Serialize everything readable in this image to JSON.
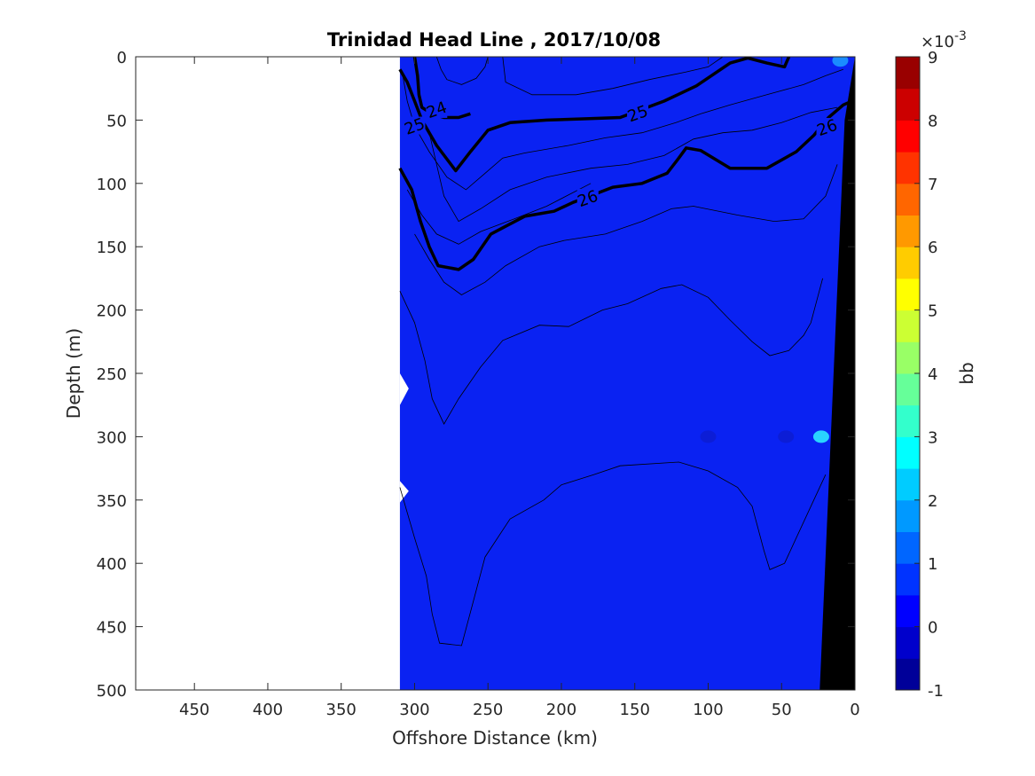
{
  "chart_data": {
    "type": "contourf",
    "title": "Trinidad Head Line , 2017/10/08",
    "xlabel": "Offshore Distance (km)",
    "ylabel": "Depth (m)",
    "xlim": [
      490,
      0
    ],
    "ylim": [
      500,
      0
    ],
    "x_reversed": true,
    "y_reversed": true,
    "xticks": [
      450,
      400,
      350,
      300,
      250,
      200,
      150,
      100,
      50,
      0
    ],
    "yticks": [
      0,
      50,
      100,
      150,
      200,
      250,
      300,
      350,
      400,
      450,
      500
    ],
    "data_extent_x": [
      310,
      0
    ],
    "grid": false,
    "colorbar": {
      "label": "bb",
      "multiplier": "×10",
      "exponent": "-3",
      "range": [
        -1,
        9
      ],
      "ticks": [
        -1,
        0,
        1,
        2,
        3,
        4,
        5,
        6,
        7,
        8,
        9
      ],
      "colormap": "jet",
      "levels": 20
    },
    "field_color_dominant": "#0a22f2",
    "seafloor_color": "#000000",
    "density_contours": [
      {
        "label": "24",
        "bold": true,
        "points": [
          [
            300,
            0
          ],
          [
            298,
            15
          ],
          [
            297,
            30
          ],
          [
            295,
            40
          ],
          [
            288,
            45
          ],
          [
            280,
            48
          ],
          [
            270,
            48
          ],
          [
            262,
            45
          ]
        ]
      },
      {
        "label": "25",
        "bold": true,
        "points": [
          [
            310,
            10
          ],
          [
            305,
            20
          ],
          [
            300,
            35
          ],
          [
            295,
            50
          ],
          [
            290,
            60
          ],
          [
            285,
            70
          ],
          [
            272,
            90
          ],
          [
            262,
            75
          ],
          [
            250,
            58
          ],
          [
            235,
            52
          ],
          [
            210,
            50
          ],
          [
            185,
            49
          ],
          [
            160,
            48
          ],
          [
            130,
            35
          ],
          [
            108,
            23
          ],
          [
            85,
            5
          ],
          [
            73,
            1
          ],
          [
            60,
            5
          ],
          [
            48,
            8
          ],
          [
            45,
            0
          ]
        ]
      },
      {
        "label": "26",
        "bold": true,
        "points": [
          [
            310,
            88
          ],
          [
            302,
            105
          ],
          [
            296,
            130
          ],
          [
            290,
            150
          ],
          [
            284,
            165
          ],
          [
            270,
            168
          ],
          [
            260,
            160
          ],
          [
            248,
            140
          ],
          [
            225,
            126
          ],
          [
            205,
            122
          ],
          [
            192,
            115
          ],
          [
            185,
            112
          ],
          [
            165,
            103
          ],
          [
            145,
            100
          ],
          [
            128,
            92
          ],
          [
            120,
            80
          ],
          [
            115,
            72
          ],
          [
            105,
            74
          ],
          [
            85,
            88
          ],
          [
            60,
            88
          ],
          [
            40,
            75
          ],
          [
            28,
            62
          ],
          [
            18,
            48
          ],
          [
            8,
            38
          ],
          [
            2,
            35
          ]
        ]
      }
    ],
    "contour_labels": [
      {
        "text": "24",
        "x": 285,
        "y": 42
      },
      {
        "text": "25",
        "x": 300,
        "y": 55
      },
      {
        "text": "25",
        "x": 148,
        "y": 45
      },
      {
        "text": "26",
        "x": 182,
        "y": 112
      },
      {
        "text": "26",
        "x": 19,
        "y": 56
      }
    ],
    "thin_contours": [
      [
        [
          310,
          185
        ],
        [
          300,
          210
        ],
        [
          293,
          240
        ],
        [
          288,
          270
        ],
        [
          280,
          290
        ],
        [
          270,
          270
        ],
        [
          255,
          245
        ],
        [
          240,
          224
        ],
        [
          215,
          212
        ],
        [
          195,
          213
        ],
        [
          172,
          200
        ],
        [
          155,
          195
        ],
        [
          132,
          183
        ],
        [
          118,
          180
        ],
        [
          100,
          190
        ],
        [
          85,
          208
        ],
        [
          70,
          225
        ],
        [
          58,
          236
        ],
        [
          45,
          232
        ],
        [
          35,
          220
        ],
        [
          30,
          210
        ],
        [
          22,
          175
        ]
      ],
      [
        [
          310,
          340
        ],
        [
          300,
          380
        ],
        [
          292,
          410
        ],
        [
          288,
          440
        ],
        [
          283,
          463
        ],
        [
          268,
          465
        ],
        [
          260,
          430
        ],
        [
          252,
          395
        ],
        [
          235,
          365
        ],
        [
          212,
          350
        ],
        [
          200,
          338
        ],
        [
          178,
          330
        ],
        [
          160,
          323
        ],
        [
          120,
          320
        ],
        [
          100,
          327
        ],
        [
          80,
          340
        ],
        [
          70,
          355
        ],
        [
          62,
          390
        ],
        [
          58,
          405
        ],
        [
          48,
          400
        ],
        [
          40,
          380
        ],
        [
          30,
          355
        ],
        [
          20,
          330
        ]
      ],
      [
        [
          308,
          15
        ],
        [
          305,
          35
        ],
        [
          300,
          55
        ],
        [
          290,
          75
        ],
        [
          278,
          95
        ],
        [
          265,
          105
        ],
        [
          252,
          92
        ],
        [
          240,
          80
        ],
        [
          225,
          76
        ],
        [
          195,
          70
        ],
        [
          170,
          64
        ],
        [
          145,
          60
        ],
        [
          122,
          52
        ],
        [
          105,
          45
        ],
        [
          85,
          38
        ],
        [
          60,
          30
        ],
        [
          35,
          22
        ],
        [
          20,
          15
        ],
        [
          8,
          10
        ]
      ],
      [
        [
          290,
          60
        ],
        [
          280,
          110
        ],
        [
          270,
          130
        ],
        [
          255,
          120
        ],
        [
          235,
          105
        ],
        [
          210,
          95
        ],
        [
          180,
          88
        ],
        [
          155,
          85
        ],
        [
          130,
          78
        ],
        [
          110,
          65
        ],
        [
          90,
          60
        ],
        [
          70,
          58
        ],
        [
          50,
          52
        ],
        [
          30,
          44
        ],
        [
          12,
          40
        ]
      ],
      [
        [
          305,
          105
        ],
        [
          295,
          125
        ],
        [
          285,
          140
        ],
        [
          270,
          148
        ],
        [
          255,
          138
        ],
        [
          232,
          128
        ],
        [
          210,
          118
        ],
        [
          180,
          100
        ]
      ],
      [
        [
          300,
          140
        ],
        [
          290,
          160
        ],
        [
          280,
          178
        ],
        [
          268,
          188
        ],
        [
          252,
          178
        ],
        [
          238,
          165
        ],
        [
          215,
          150
        ],
        [
          198,
          145
        ],
        [
          170,
          140
        ],
        [
          145,
          130
        ],
        [
          125,
          120
        ],
        [
          110,
          118
        ],
        [
          80,
          125
        ],
        [
          55,
          130
        ],
        [
          35,
          128
        ],
        [
          20,
          110
        ],
        [
          12,
          85
        ]
      ],
      [
        [
          285,
          0
        ],
        [
          282,
          10
        ],
        [
          278,
          18
        ],
        [
          268,
          22
        ],
        [
          258,
          17
        ],
        [
          252,
          8
        ],
        [
          250,
          0
        ]
      ],
      [
        [
          240,
          0
        ],
        [
          238,
          20
        ],
        [
          220,
          30
        ],
        [
          190,
          30
        ],
        [
          165,
          25
        ],
        [
          140,
          18
        ],
        [
          115,
          12
        ],
        [
          100,
          8
        ],
        [
          90,
          0
        ]
      ]
    ],
    "seafloor_polygon": [
      [
        0,
        0
      ],
      [
        0,
        500
      ],
      [
        24,
        500
      ],
      [
        7,
        50
      ]
    ],
    "white_notches": [
      [
        310,
        250
      ],
      [
        304,
        262
      ],
      [
        310,
        275
      ],
      [
        310,
        335
      ],
      [
        304,
        343
      ],
      [
        310,
        352
      ]
    ],
    "blob_features": [
      {
        "x": 100,
        "y": 300,
        "color": "#0c1dd6"
      },
      {
        "x": 47,
        "y": 300,
        "color": "#0c1dd6"
      },
      {
        "x": 23,
        "y": 300,
        "color": "#29d4ff"
      },
      {
        "x": 10,
        "y": 3,
        "color": "#1a8cff"
      }
    ]
  }
}
